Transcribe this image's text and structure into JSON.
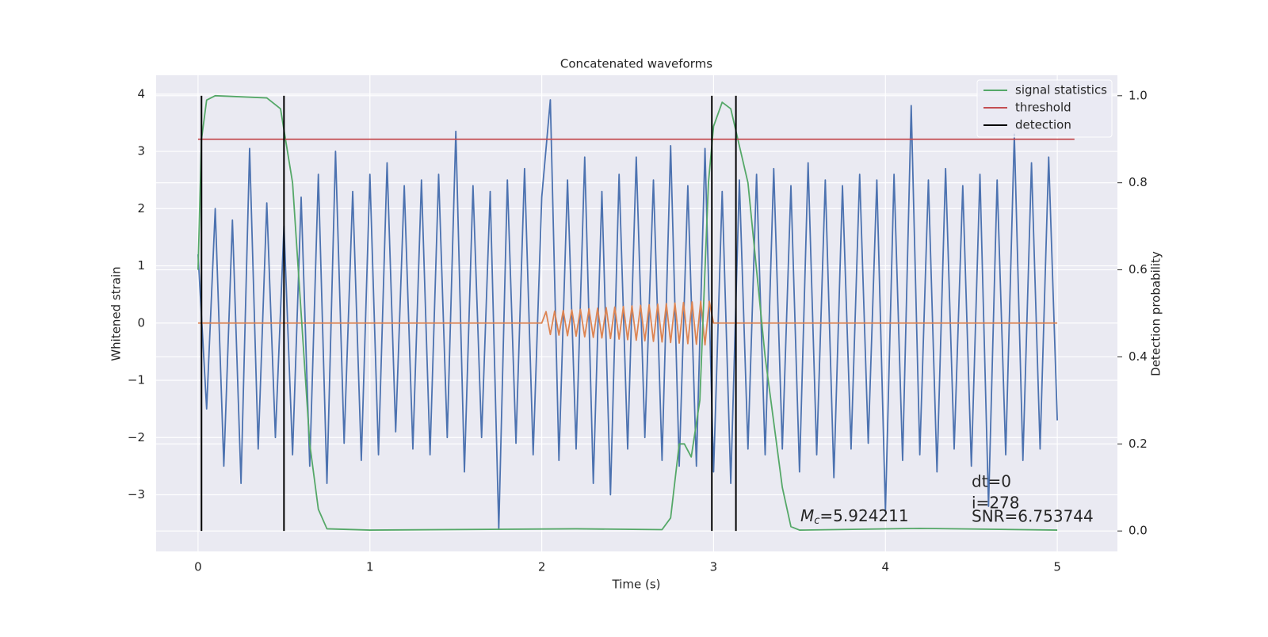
{
  "chart_data": {
    "type": "line",
    "title": "Concatenated waveforms",
    "xlabel": "Time (s)",
    "ylabel": "Whitened strain",
    "y2label": "Detection probability",
    "xlim": [
      -0.244,
      5.35
    ],
    "ylim": [
      -3.99,
      4.33
    ],
    "y2lim": [
      -0.047,
      1.047
    ],
    "xticks": [
      0,
      1,
      2,
      3,
      4,
      5
    ],
    "yticks": [
      {
        "value": -3,
        "label": "−3"
      },
      {
        "value": -2,
        "label": "−2"
      },
      {
        "value": -1,
        "label": "−1"
      },
      0,
      1,
      2,
      3,
      4
    ],
    "y2ticks": [
      {
        "value": 0,
        "label": "0.0"
      },
      0.2,
      0.4,
      0.6,
      0.8,
      {
        "value": 1,
        "label": "1.0"
      }
    ],
    "grid": true,
    "legend_position": "upper-right",
    "series": [
      {
        "color": "#4c72b0",
        "axis": "y",
        "x": [
          0,
          0.05,
          0.1,
          0.15,
          0.2,
          0.25,
          0.3,
          0.35,
          0.4,
          0.45,
          0.5,
          0.55,
          0.6,
          0.65,
          0.7,
          0.75,
          0.8,
          0.85,
          0.9,
          0.95,
          1,
          1.05,
          1.1,
          1.15,
          1.2,
          1.25,
          1.3,
          1.35,
          1.4,
          1.45,
          1.5,
          1.55,
          1.6,
          1.65,
          1.7,
          1.75,
          1.8,
          1.85,
          1.9,
          1.95,
          2,
          2.05,
          2.1,
          2.15,
          2.2,
          2.25,
          2.3,
          2.35,
          2.4,
          2.45,
          2.5,
          2.55,
          2.6,
          2.65,
          2.7,
          2.75,
          2.8,
          2.85,
          2.9,
          2.95,
          3,
          3.05,
          3.1,
          3.15,
          3.2,
          3.25,
          3.3,
          3.35,
          3.4,
          3.45,
          3.5,
          3.55,
          3.6,
          3.65,
          3.7,
          3.75,
          3.8,
          3.85,
          3.9,
          3.95,
          4,
          4.05,
          4.1,
          4.15,
          4.2,
          4.25,
          4.3,
          4.35,
          4.4,
          4.45,
          4.5,
          4.55,
          4.6,
          4.65,
          4.7,
          4.75,
          4.8,
          4.85,
          4.9,
          4.95,
          5
        ],
        "values": [
          1.2,
          -1.5,
          2.0,
          -2.5,
          1.8,
          -2.8,
          3.05,
          -2.2,
          2.1,
          -2.0,
          1.7,
          -2.3,
          2.2,
          -2.5,
          2.6,
          -2.8,
          3.0,
          -2.1,
          2.3,
          -2.4,
          2.6,
          -2.3,
          2.8,
          -1.9,
          2.4,
          -2.2,
          2.5,
          -2.3,
          2.6,
          -2.0,
          3.35,
          -2.6,
          2.4,
          -2.0,
          2.3,
          -3.6,
          2.5,
          -2.1,
          2.7,
          -2.3,
          2.2,
          3.9,
          -2.4,
          2.5,
          -2.2,
          2.9,
          -2.8,
          2.3,
          -3.0,
          2.6,
          -2.2,
          2.9,
          -2.0,
          2.5,
          -2.4,
          3.1,
          -2.5,
          2.4,
          -2.5,
          3.05,
          -2.6,
          2.3,
          -2.8,
          2.5,
          -2.2,
          2.6,
          -2.3,
          2.7,
          -2.2,
          2.4,
          -2.6,
          2.8,
          -2.3,
          2.5,
          -2.7,
          2.4,
          -2.2,
          2.6,
          -2.1,
          2.5,
          -3.3,
          2.6,
          -2.4,
          3.8,
          -2.3,
          2.5,
          -2.6,
          2.7,
          -2.2,
          2.4,
          -2.5,
          2.6,
          -3.2,
          2.5,
          -2.3,
          3.3,
          -2.4,
          2.8,
          -2.2,
          2.9,
          -1.7
        ]
      },
      {
        "color": "#dd8452",
        "axis": "y",
        "x": [
          0,
          2,
          2.025,
          2.05,
          2.075,
          2.1,
          2.125,
          2.15,
          2.175,
          2.2,
          2.225,
          2.25,
          2.275,
          2.3,
          2.325,
          2.35,
          2.375,
          2.4,
          2.425,
          2.45,
          2.475,
          2.5,
          2.525,
          2.55,
          2.575,
          2.6,
          2.625,
          2.65,
          2.675,
          2.7,
          2.725,
          2.75,
          2.775,
          2.8,
          2.825,
          2.85,
          2.875,
          2.9,
          2.925,
          2.95,
          2.975,
          3,
          5
        ],
        "values": [
          0,
          0,
          0.2,
          -0.2,
          0.21,
          -0.21,
          0.22,
          -0.22,
          0.23,
          -0.23,
          0.24,
          -0.24,
          0.25,
          -0.25,
          0.26,
          -0.26,
          0.27,
          -0.27,
          0.28,
          -0.28,
          0.29,
          -0.29,
          0.3,
          -0.3,
          0.31,
          -0.31,
          0.32,
          -0.32,
          0.33,
          -0.33,
          0.34,
          -0.34,
          0.35,
          -0.35,
          0.36,
          -0.36,
          0.37,
          -0.37,
          0.38,
          -0.38,
          0.38,
          0,
          0
        ]
      },
      {
        "name": "signal statistics",
        "color": "#55a868",
        "axis": "y2",
        "x": [
          0,
          0.02,
          0.05,
          0.1,
          0.4,
          0.48,
          0.55,
          0.6,
          0.65,
          0.7,
          0.75,
          1,
          2.2,
          2.7,
          2.75,
          2.8,
          2.83,
          2.87,
          2.92,
          2.97,
          3,
          3.05,
          3.1,
          3.2,
          3.3,
          3.4,
          3.45,
          3.5,
          4.2,
          5
        ],
        "values": [
          0.6,
          0.9,
          0.99,
          1.0,
          0.995,
          0.97,
          0.8,
          0.5,
          0.2,
          0.05,
          0.005,
          0.002,
          0.005,
          0.003,
          0.03,
          0.2,
          0.2,
          0.17,
          0.3,
          0.8,
          0.93,
          0.985,
          0.97,
          0.8,
          0.4,
          0.1,
          0.01,
          0.002,
          0.006,
          0.002
        ]
      },
      {
        "name": "threshold",
        "color": "#c44e52",
        "axis": "y2",
        "x": [
          0,
          5.1
        ],
        "values": [
          0.9,
          0.9
        ]
      },
      {
        "name": "detection",
        "color": "#000000",
        "axis": "y2",
        "kind": "vlines",
        "x": [
          0.02,
          0.5,
          2.99,
          3.13
        ],
        "span": [
          0,
          1
        ]
      }
    ],
    "annotations": {
      "mc_symbol": "M",
      "mc_subscript": "c",
      "mc_value": "=5.924211",
      "dt": "dt=0",
      "i": "i=278",
      "snr": "SNR=6.753744"
    }
  }
}
